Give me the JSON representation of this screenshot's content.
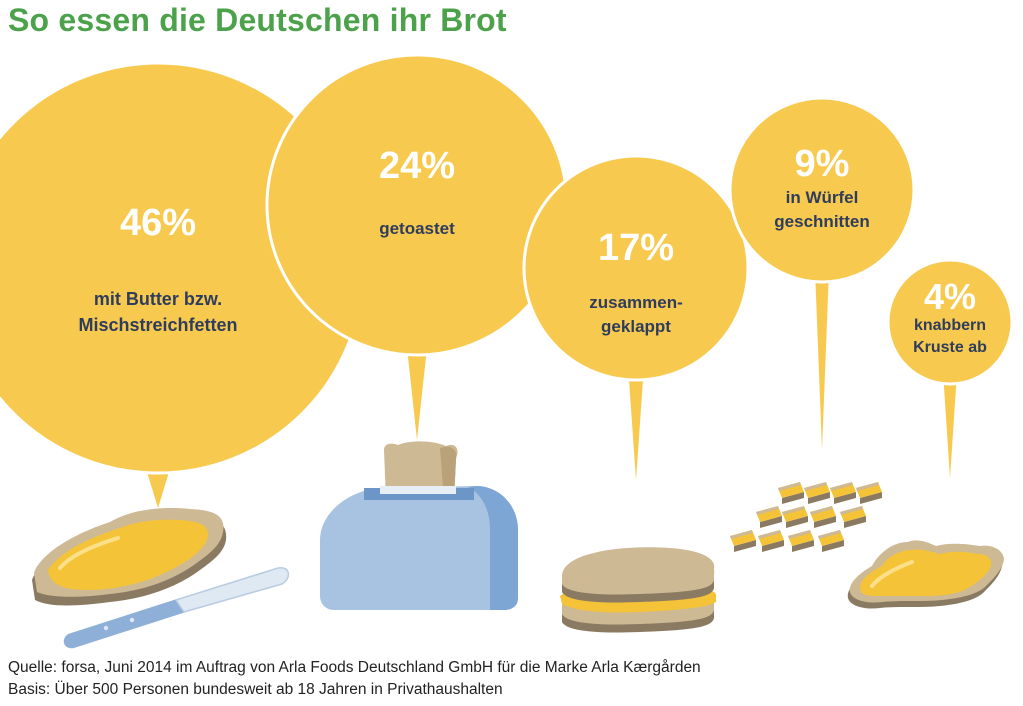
{
  "title": "So essen die Deutschen ihr Brot",
  "chart_data": {
    "type": "bubble",
    "title": "So essen die Deutschen ihr Brot",
    "unit": "%",
    "items": [
      {
        "value": 46,
        "label": "46%",
        "lines": [
          "mit Butter bzw.",
          "Mischstreichfetten"
        ]
      },
      {
        "value": 24,
        "label": "24%",
        "lines": [
          "getoastet"
        ]
      },
      {
        "value": 17,
        "label": "17%",
        "lines": [
          "zusammen-",
          "geklappt"
        ]
      },
      {
        "value": 9,
        "label": "9%",
        "lines": [
          "in Würfel",
          "geschnitten"
        ]
      },
      {
        "value": 4,
        "label": "4%",
        "lines": [
          "knabbern",
          "Kruste ab"
        ]
      }
    ]
  },
  "colors": {
    "bubble": "#f7c94e",
    "title": "#4ca24a",
    "label": "#2f3d5c"
  },
  "footer": {
    "source": "Quelle: forsa, Juni 2014 im Auftrag von Arla Foods Deutschland GmbH für die Marke Arla Kærgården",
    "basis": "Basis: Über 500 Personen bundesweit ab 18 Jahren in Privathaushalten"
  }
}
